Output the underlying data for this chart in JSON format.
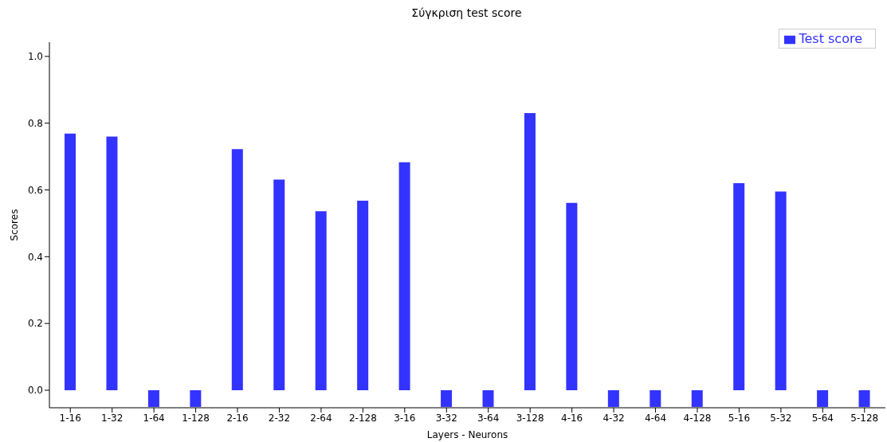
{
  "chart_data": {
    "type": "bar",
    "title": "Σύγκριση test score",
    "xlabel": "Layers - Neurons",
    "ylabel": "Scores",
    "categories": [
      "1-16",
      "1-32",
      "1-64",
      "1-128",
      "2-16",
      "2-32",
      "2-64",
      "2-128",
      "3-16",
      "3-32",
      "3-64",
      "3-128",
      "4-16",
      "4-32",
      "4-64",
      "4-128",
      "5-16",
      "5-32",
      "5-64",
      "5-128"
    ],
    "series": [
      {
        "name": "Test score",
        "color": "#3333ff",
        "values": [
          0.769,
          0.76,
          -0.05,
          -0.05,
          0.722,
          0.631,
          0.536,
          0.568,
          0.683,
          -0.05,
          -0.05,
          0.83,
          0.561,
          -0.05,
          -0.05,
          -0.05,
          0.62,
          0.595,
          -0.05,
          -0.05
        ]
      }
    ],
    "ylim": [
      -0.0525,
      1.0425
    ],
    "yticks": [
      {
        "value": 0,
        "label": "0.0"
      },
      0.2,
      0.4,
      0.6,
      0.8,
      {
        "value": 1,
        "label": "1.0"
      }
    ],
    "grid": false,
    "legend": "top right"
  }
}
